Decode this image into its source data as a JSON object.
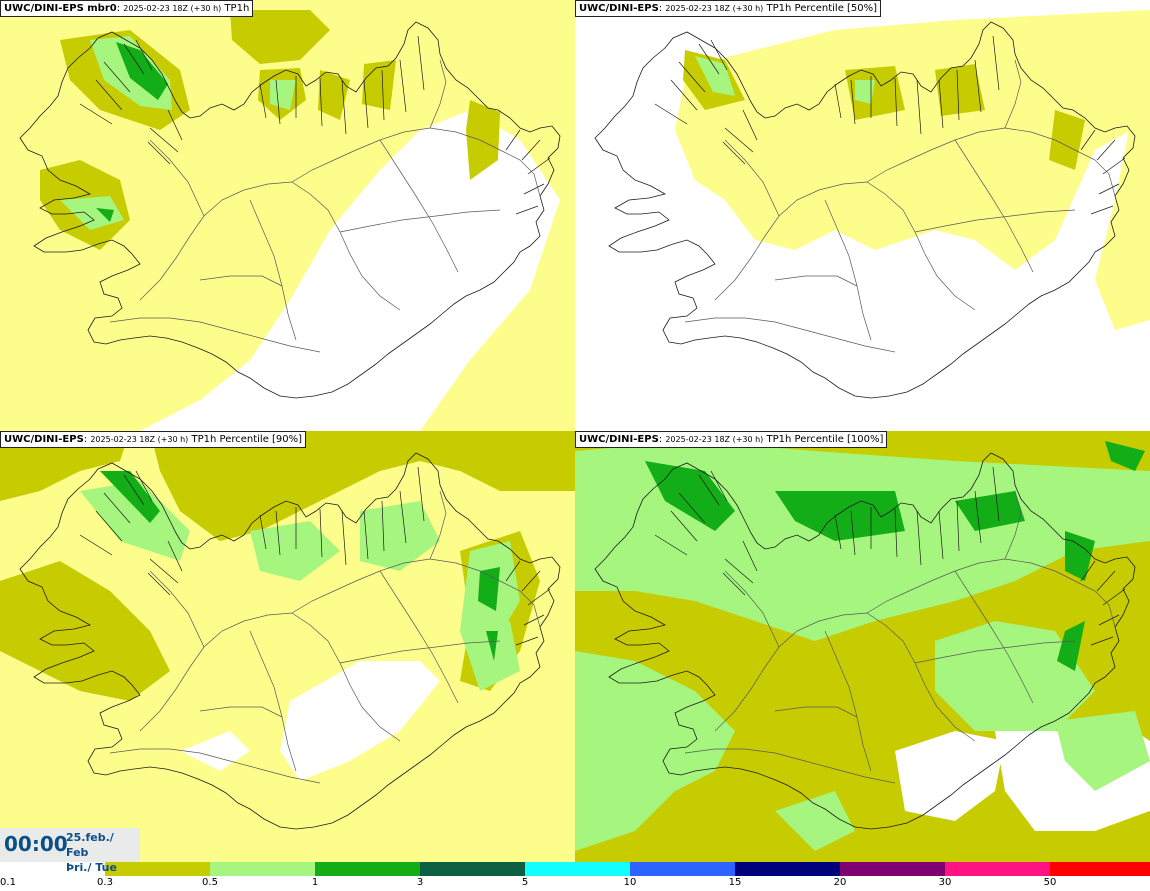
{
  "panels": [
    {
      "model": "UWC/DINI-EPS mbr0",
      "date_text": "2025-02-23 18Z (+30 h)",
      "param": "TP1h"
    },
    {
      "model": "UWC/DINI-EPS",
      "date_text": "2025-02-23 18Z (+30 h)",
      "param": "TP1h Percentile [50%]"
    },
    {
      "model": "UWC/DINI-EPS",
      "date_text": "2025-02-23 18Z (+30 h)",
      "param": "TP1h Percentile [90%]"
    },
    {
      "model": "UWC/DINI-EPS",
      "date_text": "2025-02-23 18Z (+30 h)",
      "param": "TP1h Percentile [100%]"
    }
  ],
  "time": {
    "hour": "00:00",
    "date_line": "25.feb./ Feb",
    "day_line": "Þri./ Tue"
  },
  "legend": {
    "thresholds": [
      "0.1",
      "0.3",
      "0.5",
      "1",
      "3",
      "5",
      "10",
      "15",
      "20",
      "30",
      "50"
    ],
    "colors": [
      "#ffffff",
      "#c6cc00",
      "#a5f57e",
      "#13ad17",
      "#0c5f40",
      "#14ffff",
      "#2d64ff",
      "#00007c",
      "#7e0071",
      "#ff1383",
      "#fe0000"
    ]
  },
  "palette": {
    "light": "#fdfd8c",
    "olive": "#c6cc00",
    "lgreen": "#a5f57e",
    "green": "#13ad17"
  }
}
